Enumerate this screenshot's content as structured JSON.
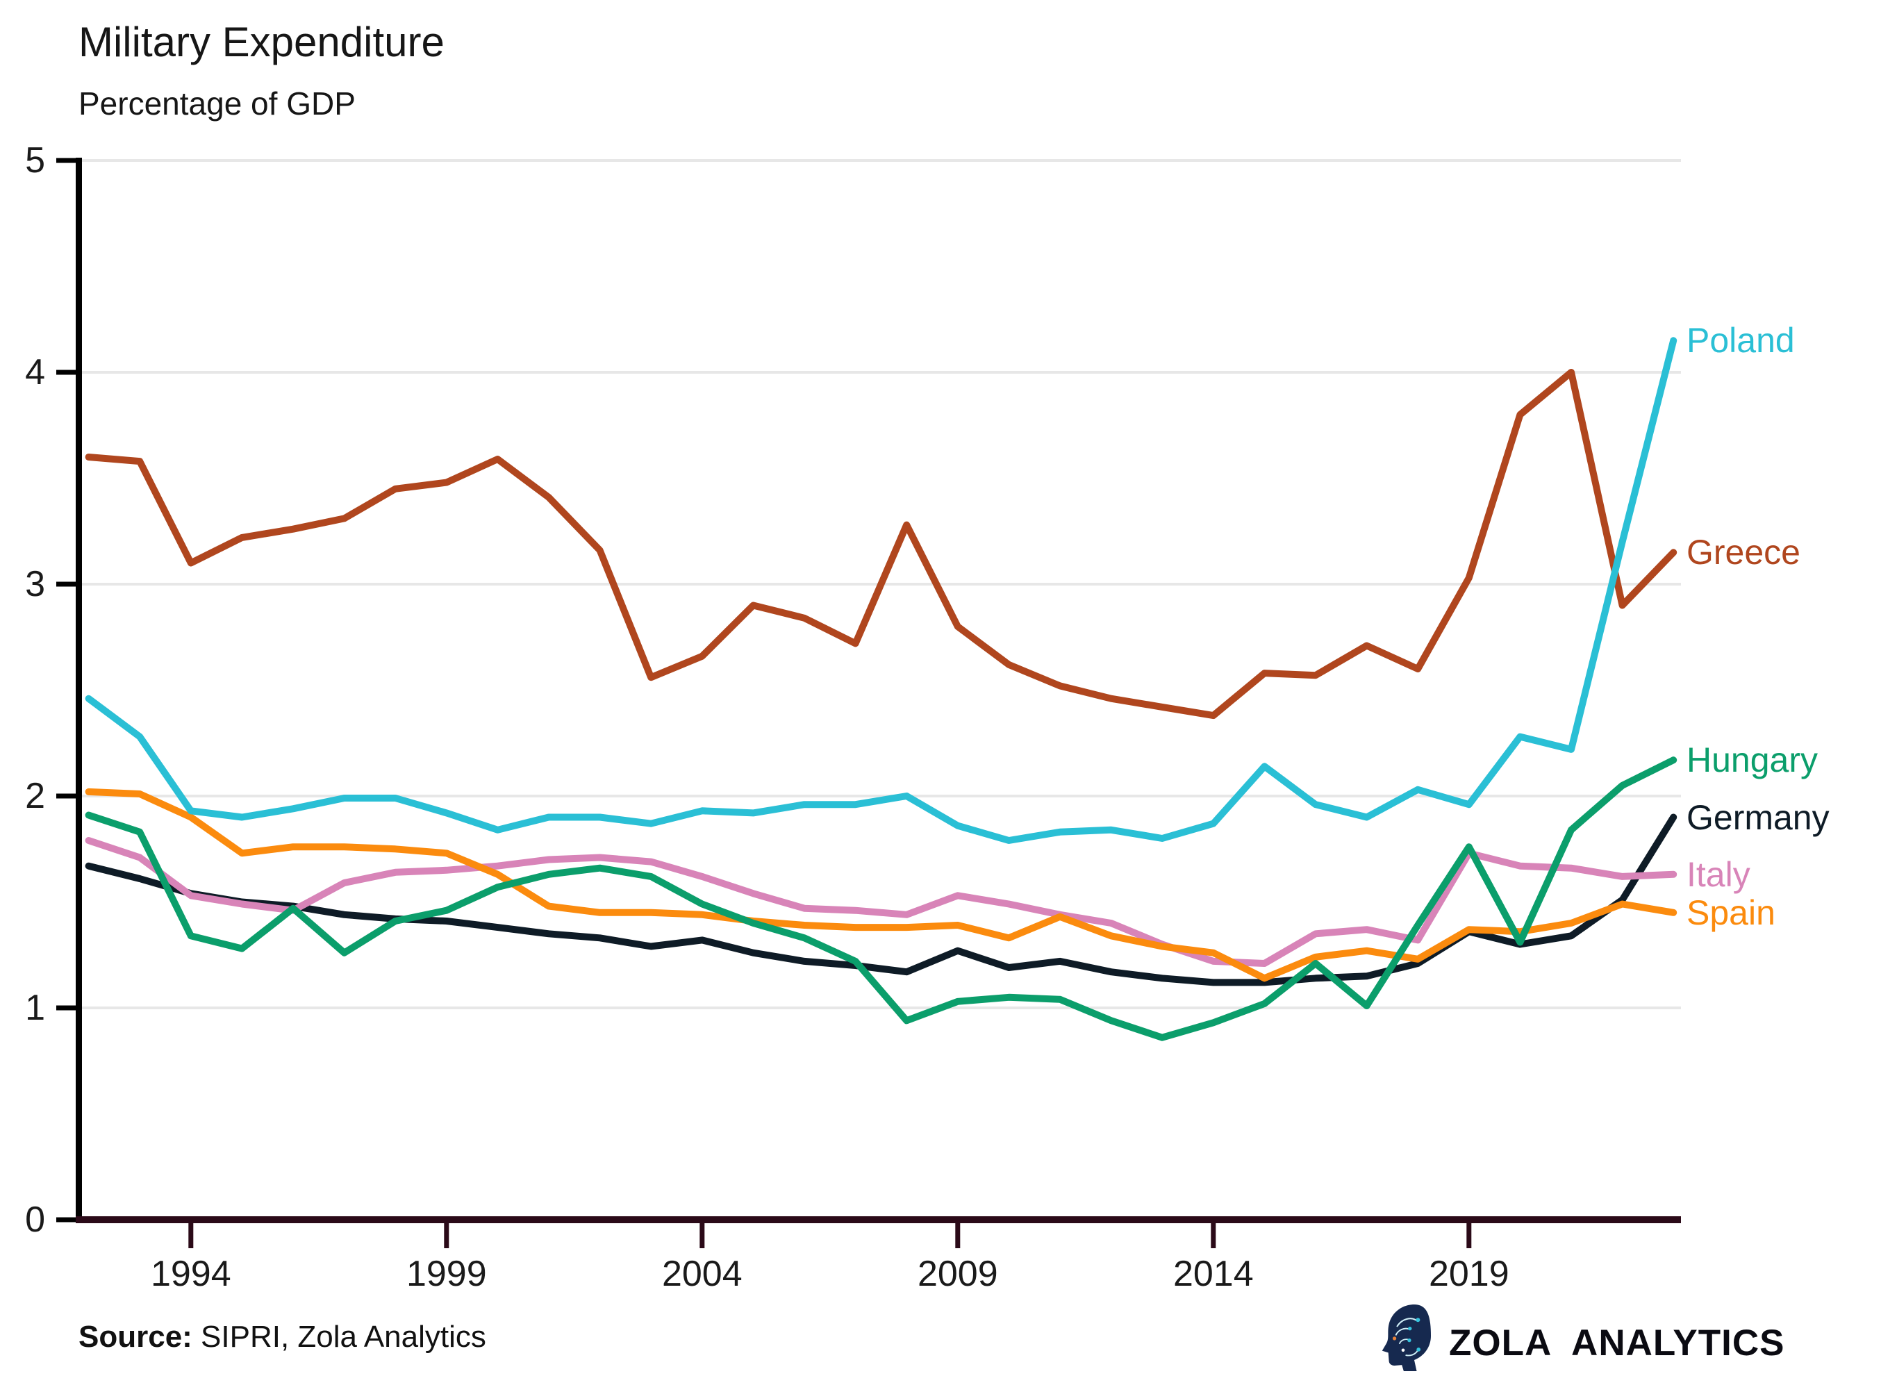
{
  "header": {
    "title": "Military Expenditure",
    "subtitle": "Percentage of GDP"
  },
  "footer": {
    "source_label": "Source:",
    "source_text": " SIPRI, Zola Analytics",
    "brand": "ZOLA ANALYTICS",
    "logo_icon": "head-circuit-icon"
  },
  "colors": {
    "axis_y": "#000000",
    "axis_x": "#2b0a18",
    "gridline": "#e7e7e7",
    "tick_text": "#1a1a1a",
    "poland": "#2abfd5",
    "greece": "#b0461e",
    "hungary": "#0b9e6b",
    "germany": "#0e1b26",
    "italy": "#d884b8",
    "spain": "#fb8b0e"
  },
  "chart_data": {
    "type": "line",
    "title": "Military Expenditure",
    "ylabel": "Percentage of GDP",
    "xlabel": "",
    "xlim": [
      1992,
      2023
    ],
    "ylim": [
      0,
      5
    ],
    "x_ticks": [
      1994,
      1999,
      2004,
      2009,
      2014,
      2019
    ],
    "y_ticks": [
      0,
      1,
      2,
      3,
      4,
      5
    ],
    "grid": "horizontal",
    "legend_position": "labels at right line ends",
    "x": [
      1992,
      1993,
      1994,
      1995,
      1996,
      1997,
      1998,
      1999,
      2000,
      2001,
      2002,
      2003,
      2004,
      2005,
      2006,
      2007,
      2008,
      2009,
      2010,
      2011,
      2012,
      2013,
      2014,
      2015,
      2016,
      2017,
      2018,
      2019,
      2020,
      2021,
      2022,
      2023
    ],
    "series": [
      {
        "name": "Poland",
        "color": "#2abfd5",
        "values": [
          2.46,
          2.28,
          1.93,
          1.9,
          1.94,
          1.99,
          1.99,
          1.92,
          1.84,
          1.9,
          1.9,
          1.87,
          1.93,
          1.92,
          1.96,
          1.96,
          2.0,
          1.86,
          1.79,
          1.83,
          1.84,
          1.8,
          1.87,
          2.14,
          1.96,
          1.9,
          2.03,
          1.96,
          2.28,
          2.22,
          3.2,
          4.15
        ]
      },
      {
        "name": "Greece",
        "color": "#b0461e",
        "values": [
          3.6,
          3.58,
          3.1,
          3.22,
          3.26,
          3.31,
          3.45,
          3.48,
          3.59,
          3.41,
          3.16,
          2.56,
          2.66,
          2.9,
          2.84,
          2.72,
          3.28,
          2.8,
          2.62,
          2.52,
          2.46,
          2.42,
          2.38,
          2.58,
          2.57,
          2.71,
          2.6,
          3.03,
          3.8,
          4.0,
          2.9,
          3.15
        ]
      },
      {
        "name": "Hungary",
        "color": "#0b9e6b",
        "values": [
          1.91,
          1.83,
          1.34,
          1.28,
          1.47,
          1.26,
          1.41,
          1.46,
          1.57,
          1.63,
          1.66,
          1.62,
          1.49,
          1.4,
          1.33,
          1.22,
          0.94,
          1.03,
          1.05,
          1.04,
          0.94,
          0.86,
          0.93,
          1.02,
          1.21,
          1.01,
          1.39,
          1.76,
          1.31,
          1.84,
          2.05,
          2.17
        ]
      },
      {
        "name": "Germany",
        "color": "#0e1b26",
        "values": [
          1.67,
          1.61,
          1.54,
          1.5,
          1.48,
          1.44,
          1.42,
          1.41,
          1.38,
          1.35,
          1.33,
          1.29,
          1.32,
          1.26,
          1.22,
          1.2,
          1.17,
          1.27,
          1.19,
          1.22,
          1.17,
          1.14,
          1.12,
          1.12,
          1.14,
          1.15,
          1.21,
          1.36,
          1.3,
          1.34,
          1.51,
          1.9
        ]
      },
      {
        "name": "Italy",
        "color": "#d884b8",
        "values": [
          1.79,
          1.71,
          1.53,
          1.49,
          1.46,
          1.59,
          1.64,
          1.65,
          1.67,
          1.7,
          1.71,
          1.69,
          1.62,
          1.54,
          1.47,
          1.46,
          1.44,
          1.53,
          1.49,
          1.44,
          1.4,
          1.3,
          1.22,
          1.21,
          1.35,
          1.37,
          1.32,
          1.73,
          1.67,
          1.66,
          1.62,
          1.63
        ]
      },
      {
        "name": "Spain",
        "color": "#fb8b0e",
        "values": [
          2.02,
          2.01,
          1.9,
          1.73,
          1.76,
          1.76,
          1.75,
          1.73,
          1.63,
          1.48,
          1.45,
          1.45,
          1.44,
          1.41,
          1.39,
          1.38,
          1.38,
          1.39,
          1.33,
          1.43,
          1.34,
          1.29,
          1.26,
          1.14,
          1.24,
          1.27,
          1.23,
          1.37,
          1.36,
          1.4,
          1.49,
          1.45
        ]
      }
    ]
  }
}
